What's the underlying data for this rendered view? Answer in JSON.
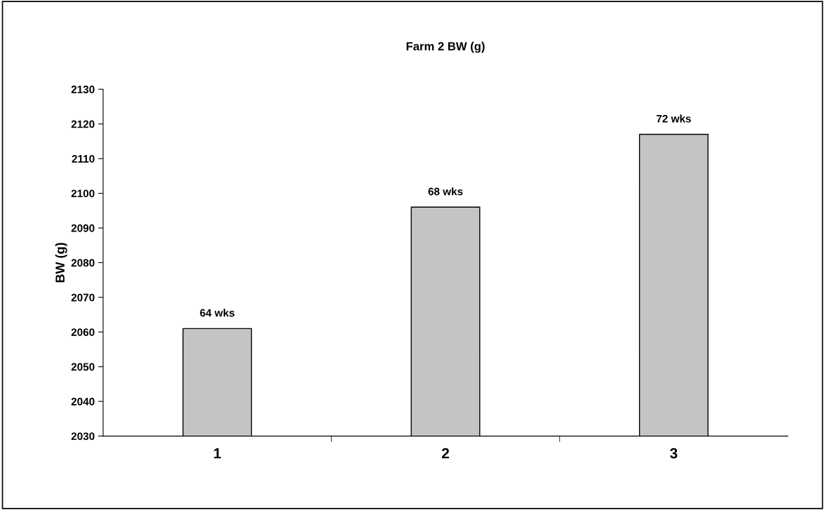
{
  "chart_data": {
    "type": "bar",
    "title": "Farm 2 BW (g)",
    "ylabel": "BW (g)",
    "categories": [
      "1",
      "2",
      "3"
    ],
    "values": [
      2061,
      2096,
      2117
    ],
    "annotations": [
      {
        "text": "64 wks",
        "x": "1",
        "y": 2061
      },
      {
        "text": "68 wks",
        "x": "2",
        "y": 2096
      },
      {
        "text": "72 wks",
        "x": "3",
        "y": 2117
      }
    ],
    "color": "#c4c4c4",
    "ylim": [
      2030,
      2130
    ],
    "yticks": [
      2030,
      2040,
      2050,
      2060,
      2070,
      2080,
      2090,
      2100,
      2110,
      2120,
      2130
    ],
    "grid": false,
    "legend": false
  }
}
